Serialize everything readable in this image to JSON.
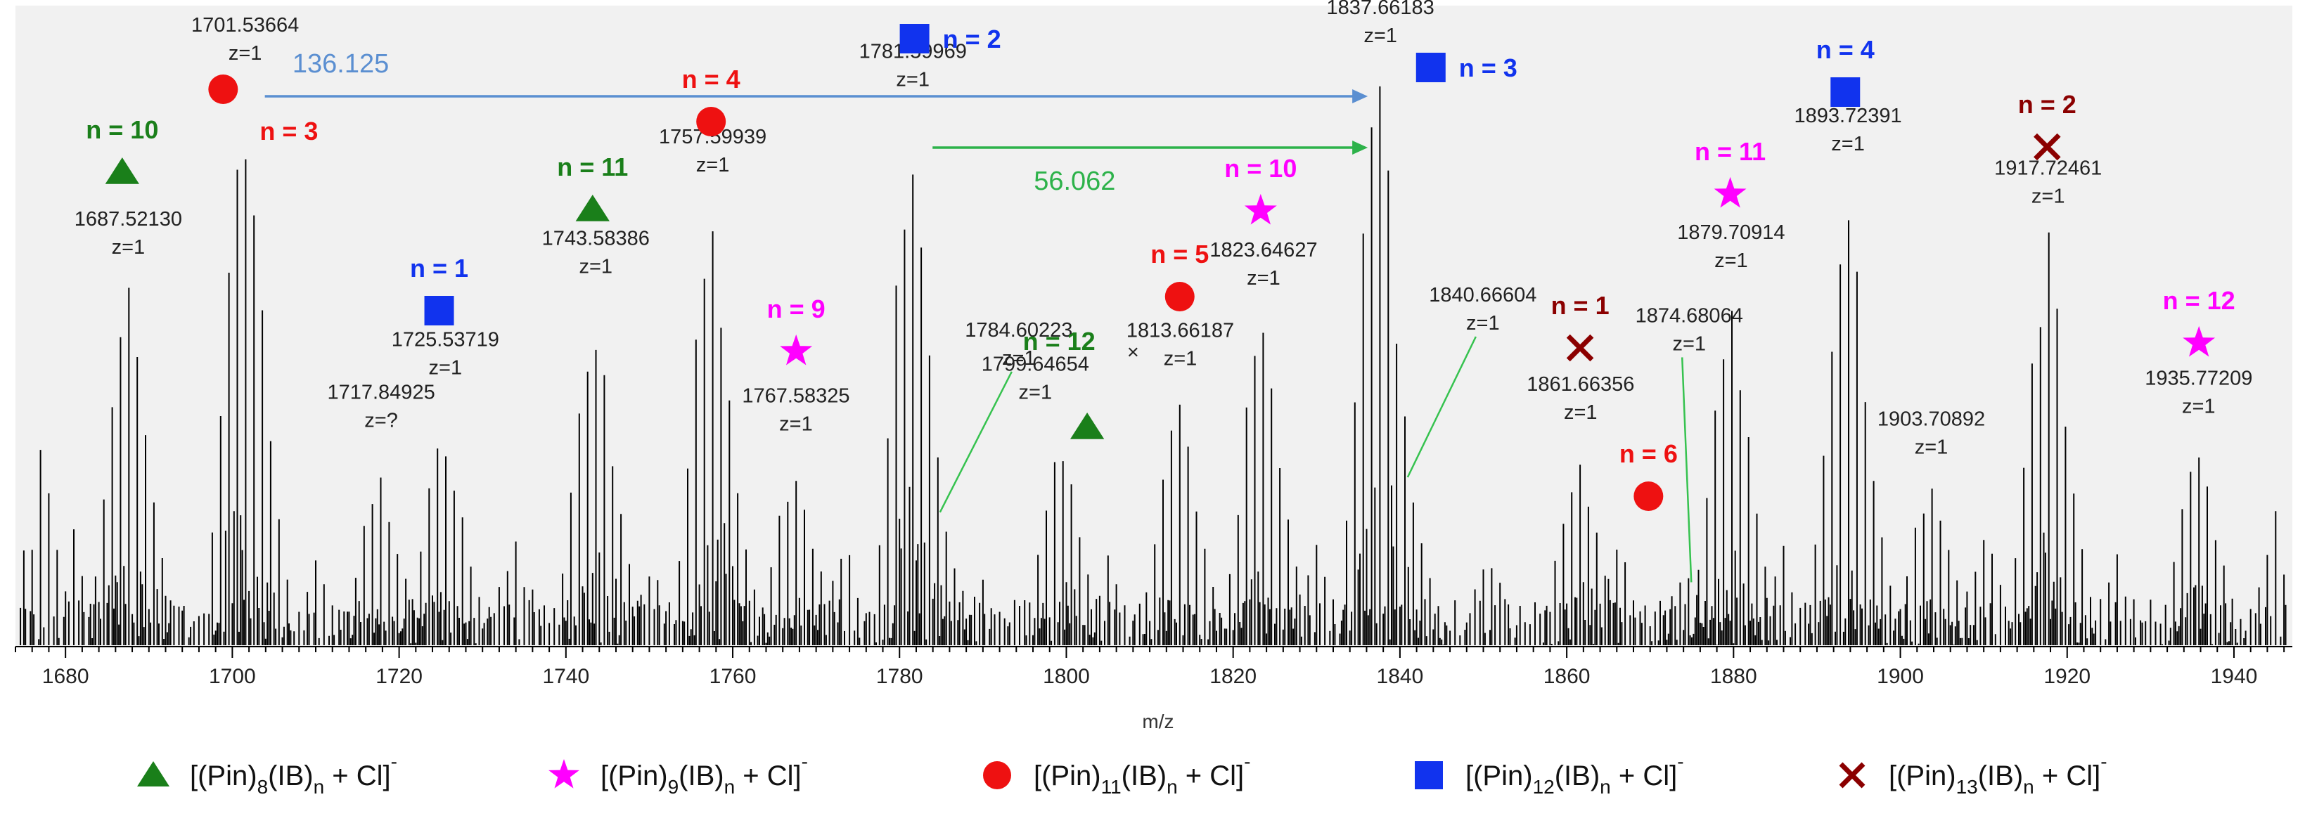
{
  "chart_data": {
    "type": "line",
    "title": "",
    "xlabel": "m/z",
    "ylabel": "",
    "xlim": [
      1674,
      1947
    ],
    "ylim": [
      0,
      100
    ],
    "grid": false,
    "x_ticks": [
      "1680",
      "1700",
      "1720",
      "1740",
      "1760",
      "1780",
      "1800",
      "1820",
      "1840",
      "1860",
      "1880",
      "1900",
      "1920",
      "1940"
    ],
    "colors": {
      "pin8": "#1a7f1a",
      "pin9": "#ff00ff",
      "pin11": "#ee1111",
      "pin12": "#1133ee",
      "pin13": "#8b0000",
      "arrow_blue": "#5b8fd1",
      "arrow_green": "#2db24a",
      "leader": "#36c24f",
      "spectrum": "#000000",
      "plot_bg": "#f1f1f1"
    },
    "series": [
      {
        "name": "[(Pin)8(IB)n + Cl]-",
        "marker": "triangle",
        "color": "#1a7f1a",
        "points": [
          {
            "n": 10,
            "mz": 1687.5213
          },
          {
            "n": 11,
            "mz": 1743.58386
          },
          {
            "n": 12,
            "mz": 1799.64654
          }
        ]
      },
      {
        "name": "[(Pin)9(IB)n + Cl]-",
        "marker": "star",
        "color": "#ff00ff",
        "points": [
          {
            "n": 9,
            "mz": 1767.58325
          },
          {
            "n": 10,
            "mz": 1823.64627
          },
          {
            "n": 11,
            "mz": 1879.70914
          },
          {
            "n": 12,
            "mz": 1935.77209
          }
        ]
      },
      {
        "name": "[(Pin)11(IB)n + Cl]-",
        "marker": "circle",
        "color": "#ee1111",
        "points": [
          {
            "n": 3,
            "mz": 1701.53664
          },
          {
            "n": 4,
            "mz": 1757.59939
          },
          {
            "n": 5,
            "mz": 1813.66187
          },
          {
            "n": 6,
            "mz": 1874.68064
          }
        ]
      },
      {
        "name": "[(Pin)12(IB)n + Cl]-",
        "marker": "square",
        "color": "#1133ee",
        "points": [
          {
            "n": 1,
            "mz": 1725.53719
          },
          {
            "n": 2,
            "mz": 1781.59969
          },
          {
            "n": 3,
            "mz": 1837.66183
          },
          {
            "n": 4,
            "mz": 1893.72391
          }
        ]
      },
      {
        "name": "[(Pin)13(IB)n + Cl]-",
        "marker": "x",
        "color": "#8b0000",
        "points": [
          {
            "n": 1,
            "mz": 1861.66356
          },
          {
            "n": 2,
            "mz": 1917.72461
          }
        ]
      }
    ],
    "peak_annotations": [
      {
        "mz": 1687.52,
        "intensity": 63,
        "label": "1687.52130",
        "charge": "z=1"
      },
      {
        "mz": 1701.54,
        "intensity": 97,
        "label": "1701.53664",
        "charge": "z=1"
      },
      {
        "mz": 1717.85,
        "intensity": 29,
        "label": "1717.84925",
        "charge": "z=?"
      },
      {
        "mz": 1725.54,
        "intensity": 38,
        "label": "1725.53719",
        "charge": "z=1"
      },
      {
        "mz": 1743.58,
        "intensity": 59,
        "label": "1743.58386",
        "charge": "z=1"
      },
      {
        "mz": 1757.6,
        "intensity": 74,
        "label": "1757.59939",
        "charge": "z=1"
      },
      {
        "mz": 1767.58,
        "intensity": 32,
        "label": "1767.58325",
        "charge": "z=1"
      },
      {
        "mz": 1781.6,
        "intensity": 91,
        "label": "1781.59969",
        "charge": "z=1"
      },
      {
        "mz": 1784.6,
        "intensity": 24,
        "label": "1784.60223",
        "charge": "z=1"
      },
      {
        "mz": 1799.65,
        "intensity": 35,
        "label": "1799.64654",
        "charge": "z=1"
      },
      {
        "mz": 1813.66,
        "intensity": 42,
        "label": "1813.66187",
        "charge": "z=1"
      },
      {
        "mz": 1823.65,
        "intensity": 57,
        "label": "1823.64627",
        "charge": "z=1"
      },
      {
        "mz": 1837.66,
        "intensity": 100,
        "label": "1837.66183",
        "charge": "z=1"
      },
      {
        "mz": 1840.67,
        "intensity": 30,
        "label": "1840.66604",
        "charge": "z=1"
      },
      {
        "mz": 1861.66,
        "intensity": 34,
        "label": "1861.66356",
        "charge": "z=1"
      },
      {
        "mz": 1874.68,
        "intensity": 12,
        "label": "1874.68064",
        "charge": "z=1"
      },
      {
        "mz": 1879.71,
        "intensity": 60,
        "label": "1879.70914",
        "charge": "z=1"
      },
      {
        "mz": 1893.72,
        "intensity": 80,
        "label": "1893.72391",
        "charge": "z=1"
      },
      {
        "mz": 1903.71,
        "intensity": 28,
        "label": "1903.70892",
        "charge": "z=1"
      },
      {
        "mz": 1917.72,
        "intensity": 71,
        "label": "1917.72461",
        "charge": "z=1"
      },
      {
        "mz": 1935.77,
        "intensity": 35,
        "label": "1935.77209",
        "charge": "z=1"
      }
    ],
    "mass_differences": [
      {
        "label": "136.125",
        "from_mz": 1701.54,
        "to_mz": 1837.66,
        "color": "#5b8fd1"
      },
      {
        "label": "56.062",
        "from_mz": 1781.6,
        "to_mz": 1837.66,
        "color": "#2db24a"
      }
    ],
    "legend": [
      {
        "marker": "triangle",
        "color": "#1a7f1a",
        "pre": "[(Pin)",
        "sub1": "8",
        "mid": "(IB)",
        "sub2": "n",
        "post": " + Cl]",
        "sup": "-"
      },
      {
        "marker": "star",
        "color": "#ff00ff",
        "pre": "[(Pin)",
        "sub1": "9",
        "mid": "(IB)",
        "sub2": "n",
        "post": " + Cl]",
        "sup": "-"
      },
      {
        "marker": "circle",
        "color": "#ee1111",
        "pre": "[(Pin)",
        "sub1": "11",
        "mid": "(IB)",
        "sub2": "n",
        "post": " + Cl]",
        "sup": "-"
      },
      {
        "marker": "square",
        "color": "#1133ee",
        "pre": "[(Pin)",
        "sub1": "12",
        "mid": "(IB)",
        "sub2": "n",
        "post": " + Cl]",
        "sup": "-"
      },
      {
        "marker": "x",
        "color": "#8b0000",
        "pre": "[(Pin)",
        "sub1": "13",
        "mid": "(IB)",
        "sub2": "n",
        "post": " + Cl]",
        "sup": "-"
      }
    ],
    "stray_mark": {
      "mz": 1808,
      "intensity": 25,
      "symbol": "×"
    }
  }
}
